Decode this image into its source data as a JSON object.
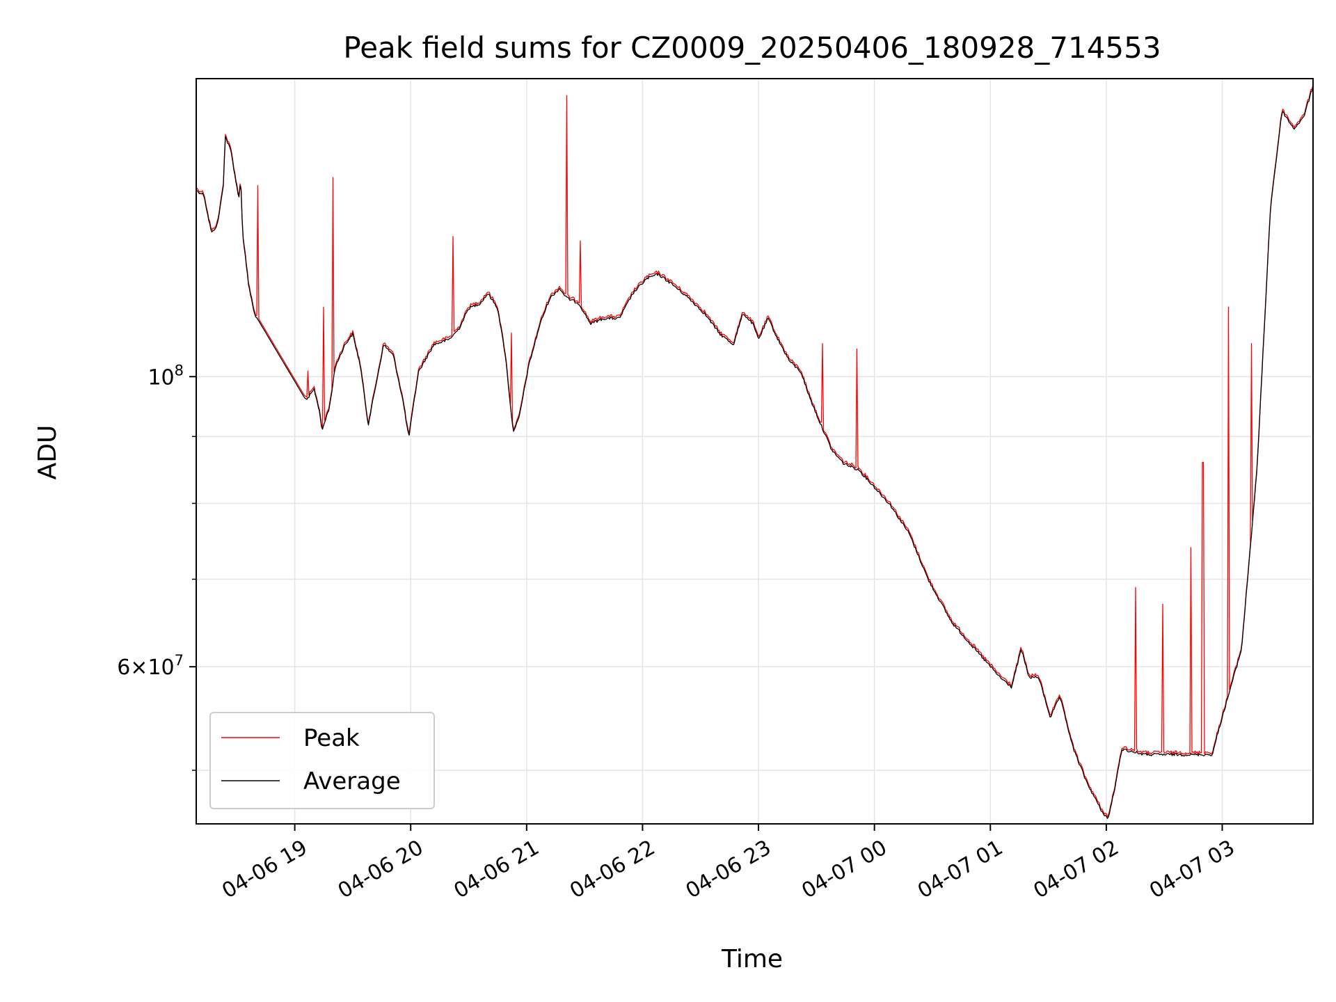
{
  "chart_data": {
    "type": "line",
    "title": "Peak field sums for CZ0009_20250406_180928_714553",
    "xlabel": "Time",
    "ylabel": "ADU",
    "y_scale": "log",
    "grid": true,
    "legend_position": "lower-left",
    "xlim": [
      "2025-04-06 18:09",
      "2025-04-07 03:47"
    ],
    "ylim": [
      45500000,
      169000000
    ],
    "x_ticks": [
      {
        "value": "2025-04-06 19:00",
        "label": "04-06 19"
      },
      {
        "value": "2025-04-06 20:00",
        "label": "04-06 20"
      },
      {
        "value": "2025-04-06 21:00",
        "label": "04-06 21"
      },
      {
        "value": "2025-04-06 22:00",
        "label": "04-06 22"
      },
      {
        "value": "2025-04-06 23:00",
        "label": "04-06 23"
      },
      {
        "value": "2025-04-07 00:00",
        "label": "04-07 00"
      },
      {
        "value": "2025-04-07 01:00",
        "label": "04-07 01"
      },
      {
        "value": "2025-04-07 02:00",
        "label": "04-07 02"
      },
      {
        "value": "2025-04-07 03:00",
        "label": "04-07 03"
      }
    ],
    "y_major_ticks": [
      {
        "value": 100000000,
        "base": "10",
        "exp": "8"
      },
      {
        "value": 60000000,
        "mant": "6",
        "base": "10",
        "exp": "7"
      }
    ],
    "y_minor_grid": [
      50000000,
      70000000,
      80000000,
      90000000
    ],
    "series": [
      {
        "name": "Peak",
        "color": "#ff0000",
        "points": [
          [
            "2025-04-06 18:09",
            139000000
          ],
          [
            "2025-04-06 18:13",
            138000000
          ],
          [
            "2025-04-06 18:15",
            133000000
          ],
          [
            "2025-04-06 18:17",
            129000000
          ],
          [
            "2025-04-06 18:20",
            131000000
          ],
          [
            "2025-04-06 18:23",
            140000000
          ],
          [
            "2025-04-06 18:24",
            153000000
          ],
          [
            "2025-04-06 18:27",
            149000000
          ],
          [
            "2025-04-06 18:31",
            137000000
          ],
          [
            "2025-04-06 18:32",
            142000000
          ],
          [
            "2025-04-06 18:33",
            129000000
          ],
          [
            "2025-04-06 18:36",
            118000000
          ],
          [
            "2025-04-06 18:39",
            112000000
          ],
          [
            "2025-04-06 19:06",
            96000000
          ],
          [
            "2025-04-06 19:10",
            98000000
          ],
          [
            "2025-04-06 19:13",
            94000000
          ],
          [
            "2025-04-06 19:14",
            91000000
          ],
          [
            "2025-04-06 19:18",
            95000000
          ],
          [
            "2025-04-06 19:21",
            102000000
          ],
          [
            "2025-04-06 19:26",
            106000000
          ],
          [
            "2025-04-06 19:30",
            108000000
          ],
          [
            "2025-04-06 19:34",
            102000000
          ],
          [
            "2025-04-06 19:38",
            92000000
          ],
          [
            "2025-04-06 19:41",
            97000000
          ],
          [
            "2025-04-06 19:46",
            106000000
          ],
          [
            "2025-04-06 19:51",
            104000000
          ],
          [
            "2025-04-06 19:56",
            96000000
          ],
          [
            "2025-04-06 19:59",
            90000000
          ],
          [
            "2025-04-06 20:04",
            101000000
          ],
          [
            "2025-04-06 20:12",
            106000000
          ],
          [
            "2025-04-06 20:20",
            107000000
          ],
          [
            "2025-04-06 20:25",
            109000000
          ],
          [
            "2025-04-06 20:30",
            113000000
          ],
          [
            "2025-04-06 20:36",
            114000000
          ],
          [
            "2025-04-06 20:40",
            116000000
          ],
          [
            "2025-04-06 20:45",
            113000000
          ],
          [
            "2025-04-06 20:49",
            104000000
          ],
          [
            "2025-04-06 20:52",
            94000000
          ],
          [
            "2025-04-06 20:53",
            91000000
          ],
          [
            "2025-04-06 20:56",
            93000000
          ],
          [
            "2025-04-06 21:01",
            102000000
          ],
          [
            "2025-04-06 21:07",
            110000000
          ],
          [
            "2025-04-06 21:12",
            115000000
          ],
          [
            "2025-04-06 21:17",
            117000000
          ],
          [
            "2025-04-06 21:21",
            115000000
          ],
          [
            "2025-04-06 21:27",
            114000000
          ],
          [
            "2025-04-06 21:33",
            110000000
          ],
          [
            "2025-04-06 21:40",
            111000000
          ],
          [
            "2025-04-06 21:48",
            111000000
          ],
          [
            "2025-04-06 21:55",
            116000000
          ],
          [
            "2025-04-06 22:02",
            119000000
          ],
          [
            "2025-04-06 22:08",
            120000000
          ],
          [
            "2025-04-06 22:15",
            118000000
          ],
          [
            "2025-04-06 22:24",
            115000000
          ],
          [
            "2025-04-06 22:32",
            112000000
          ],
          [
            "2025-04-06 22:40",
            108000000
          ],
          [
            "2025-04-06 22:47",
            106000000
          ],
          [
            "2025-04-06 22:52",
            112000000
          ],
          [
            "2025-04-06 22:57",
            110000000
          ],
          [
            "2025-04-06 23:00",
            107000000
          ],
          [
            "2025-04-06 23:05",
            111000000
          ],
          [
            "2025-04-06 23:10",
            107000000
          ],
          [
            "2025-04-06 23:16",
            103000000
          ],
          [
            "2025-04-06 23:22",
            101000000
          ],
          [
            "2025-04-06 23:26",
            97000000
          ],
          [
            "2025-04-06 23:31",
            93000000
          ],
          [
            "2025-04-06 23:38",
            88000000
          ],
          [
            "2025-04-06 23:44",
            86000000
          ],
          [
            "2025-04-06 23:52",
            85000000
          ],
          [
            "2025-04-07 00:08",
            80000000
          ],
          [
            "2025-04-07 00:18",
            76000000
          ],
          [
            "2025-04-07 00:28",
            70000000
          ],
          [
            "2025-04-07 00:40",
            65000000
          ],
          [
            "2025-04-07 00:52",
            62000000
          ],
          [
            "2025-04-07 01:05",
            59000000
          ],
          [
            "2025-04-07 01:11",
            58000000
          ],
          [
            "2025-04-07 01:16",
            62000000
          ],
          [
            "2025-04-07 01:20",
            59000000
          ],
          [
            "2025-04-07 01:25",
            59000000
          ],
          [
            "2025-04-07 01:31",
            55000000
          ],
          [
            "2025-04-07 01:36",
            57000000
          ],
          [
            "2025-04-07 01:43",
            52000000
          ],
          [
            "2025-04-07 01:50",
            49000000
          ],
          [
            "2025-04-07 01:58",
            46500000
          ],
          [
            "2025-04-07 02:01",
            46000000
          ],
          [
            "2025-04-07 02:05",
            49000000
          ],
          [
            "2025-04-07 02:08",
            52000000
          ],
          [
            "2025-04-07 02:20",
            51500000
          ],
          [
            "2025-04-07 02:40",
            51500000
          ],
          [
            "2025-04-07 02:55",
            51500000
          ],
          [
            "2025-04-07 02:57",
            53000000
          ],
          [
            "2025-04-07 03:00",
            55000000
          ],
          [
            "2025-04-07 03:10",
            62000000
          ],
          [
            "2025-04-07 03:18",
            85000000
          ],
          [
            "2025-04-07 03:25",
            135000000
          ],
          [
            "2025-04-07 03:31",
            160000000
          ],
          [
            "2025-04-07 03:37",
            155000000
          ],
          [
            "2025-04-07 03:42",
            158000000
          ],
          [
            "2025-04-07 03:47",
            167000000
          ]
        ],
        "spikes": [
          [
            "2025-04-06 18:41",
            140000000
          ],
          [
            "2025-04-06 19:07",
            101000000
          ],
          [
            "2025-04-06 19:15",
            113000000
          ],
          [
            "2025-04-06 19:20",
            142000000
          ],
          [
            "2025-04-06 20:22",
            128000000
          ],
          [
            "2025-04-06 20:52",
            108000000
          ],
          [
            "2025-04-06 21:21",
            164000000
          ],
          [
            "2025-04-06 21:28",
            127000000
          ],
          [
            "2025-04-06 23:33",
            106000000
          ],
          [
            "2025-04-06 23:51",
            105000000
          ],
          [
            "2025-04-07 02:15",
            69000000
          ],
          [
            "2025-04-07 02:29",
            67000000
          ],
          [
            "2025-04-07 02:44",
            74000000
          ],
          [
            "2025-04-07 02:50",
            86000000
          ],
          [
            "2025-04-07 03:03",
            113000000
          ],
          [
            "2025-04-07 03:15",
            106000000
          ],
          [
            "2025-04-07 03:22",
            112000000
          ]
        ]
      },
      {
        "name": "Average",
        "color": "#000000"
      }
    ]
  }
}
